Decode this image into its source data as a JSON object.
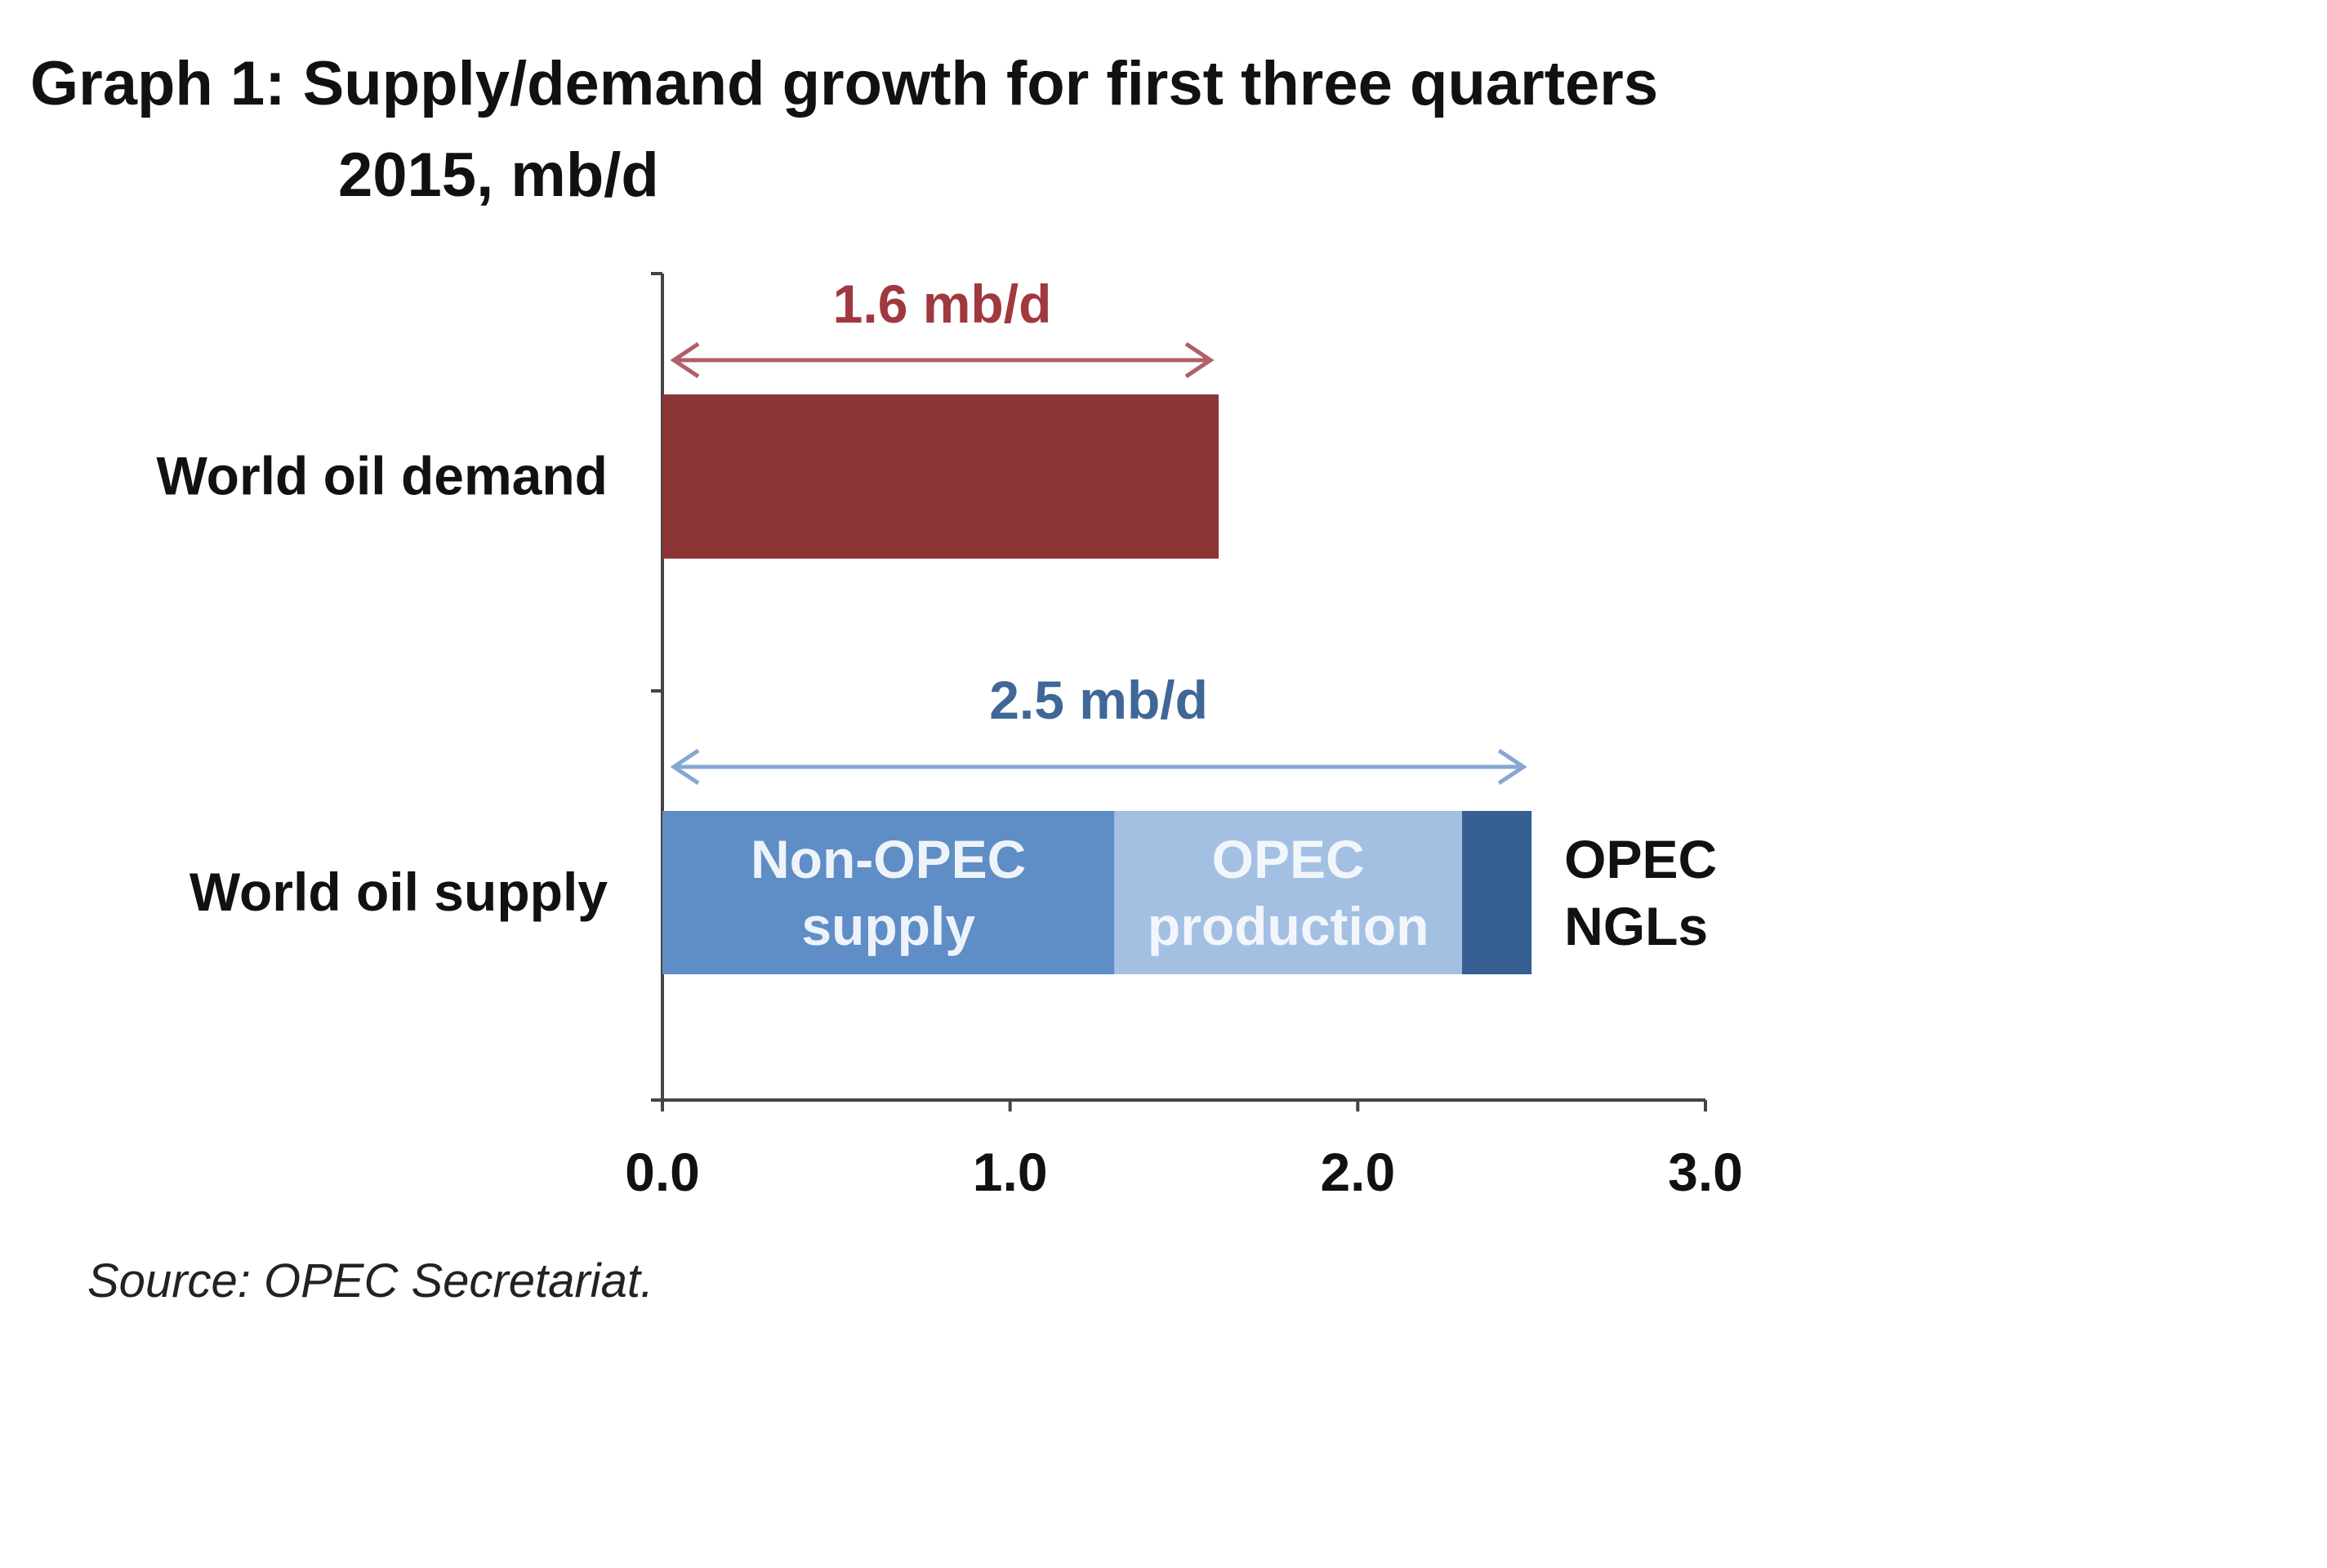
{
  "chart_data": {
    "type": "bar",
    "orientation": "horizontal",
    "stacked": true,
    "title_line1": "Graph 1: Supply/demand growth for first three quarters",
    "title_line2": "2015, mb/d",
    "categories": [
      "World oil demand",
      "World oil supply"
    ],
    "series": [
      {
        "name": "World oil demand",
        "category": "World oil demand",
        "value": 1.6,
        "color": "#8b3535"
      },
      {
        "name": "Non-OPEC supply",
        "category": "World oil supply",
        "value": 1.3,
        "color": "#5f8dc5",
        "label_lines": [
          "Non-OPEC",
          "supply"
        ]
      },
      {
        "name": "OPEC production",
        "category": "World oil supply",
        "value": 1.0,
        "color": "#a3c0e3",
        "label_lines": [
          "OPEC",
          "production"
        ]
      },
      {
        "name": "OPEC NGLs",
        "category": "World oil supply",
        "value": 0.2,
        "color": "#355f93",
        "label_lines": [
          "OPEC",
          "NGLs"
        ]
      }
    ],
    "annotations": [
      {
        "text": "1.6 mb/d",
        "value": 1.6,
        "category": "World oil demand",
        "color": "#a0393f",
        "arrow_color": "#b06068"
      },
      {
        "text": "2.5 mb/d",
        "value": 2.5,
        "category": "World oil supply",
        "color": "#3f6797",
        "arrow_color": "#86a8d2"
      }
    ],
    "xlim": [
      0,
      3
    ],
    "xticks": [
      "0.0",
      "1.0",
      "2.0",
      "3.0"
    ],
    "xlabel": "",
    "ylabel": "",
    "grid": false,
    "source": "Source: OPEC Secretariat."
  }
}
